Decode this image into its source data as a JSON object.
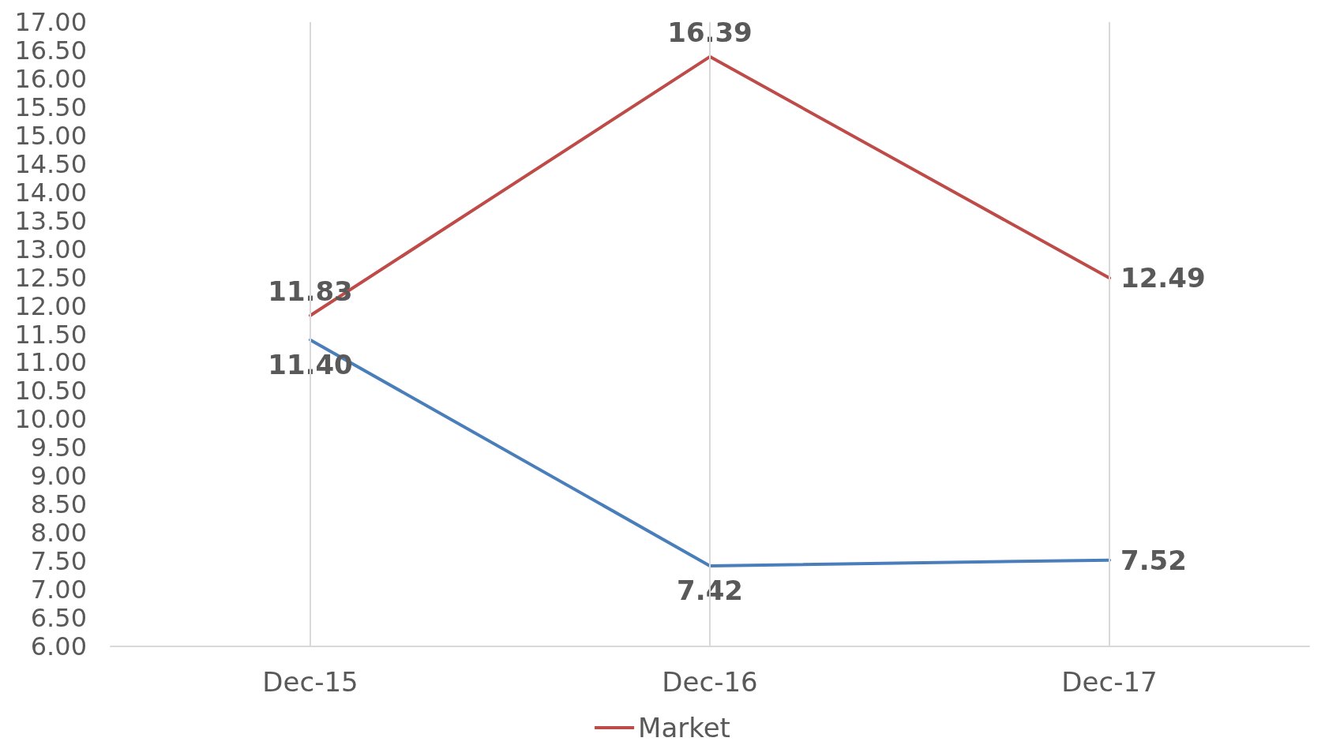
{
  "chart_data": {
    "type": "line",
    "categories": [
      "Dec-15",
      "Dec-16",
      "Dec-17"
    ],
    "series": [
      {
        "color": "#4a7ebb",
        "values": [
          11.4,
          7.42,
          7.52
        ],
        "value_labels": [
          "11.40",
          "7.42",
          "7.52"
        ]
      },
      {
        "name": "Market",
        "color": "#be4b48",
        "values": [
          11.83,
          16.39,
          12.49
        ],
        "value_labels": [
          "11.83",
          "16.39",
          "12.49"
        ]
      }
    ],
    "ylim": [
      6,
      17
    ],
    "yticks": [
      {
        "value": 6,
        "label": "6.00"
      },
      {
        "value": 6.5,
        "label": "6.50"
      },
      {
        "value": 7,
        "label": "7.00"
      },
      {
        "value": 7.5,
        "label": "7.50"
      },
      {
        "value": 8,
        "label": "8.00"
      },
      {
        "value": 8.5,
        "label": "8.50"
      },
      {
        "value": 9,
        "label": "9.00"
      },
      {
        "value": 9.5,
        "label": "9.50"
      },
      {
        "value": 10,
        "label": "10.00"
      },
      {
        "value": 10.5,
        "label": "10.50"
      },
      {
        "value": 11,
        "label": "11.00"
      },
      {
        "value": 11.5,
        "label": "11.50"
      },
      {
        "value": 12,
        "label": "12.00"
      },
      {
        "value": 12.5,
        "label": "12.50"
      },
      {
        "value": 13,
        "label": "13.00"
      },
      {
        "value": 13.5,
        "label": "13.50"
      },
      {
        "value": 14,
        "label": "14.00"
      },
      {
        "value": 14.5,
        "label": "14.50"
      },
      {
        "value": 15,
        "label": "15.00"
      },
      {
        "value": 15.5,
        "label": "15.50"
      },
      {
        "value": 16,
        "label": "16.00"
      },
      {
        "value": 16.5,
        "label": "16.50"
      },
      {
        "value": 17,
        "label": "17.00"
      }
    ],
    "grid": "x",
    "legend": "bottom",
    "marker": "none",
    "line_style": "solid"
  }
}
